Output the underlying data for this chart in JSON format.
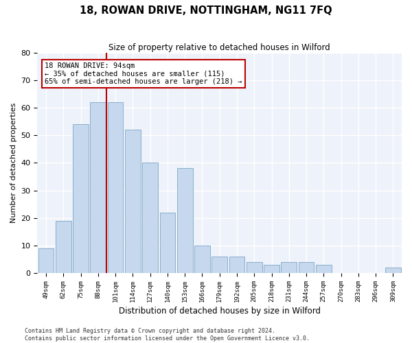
{
  "title": "18, ROWAN DRIVE, NOTTINGHAM, NG11 7FQ",
  "subtitle": "Size of property relative to detached houses in Wilford",
  "xlabel": "Distribution of detached houses by size in Wilford",
  "ylabel": "Number of detached properties",
  "bar_labels": [
    "49sqm",
    "62sqm",
    "75sqm",
    "88sqm",
    "101sqm",
    "114sqm",
    "127sqm",
    "140sqm",
    "153sqm",
    "166sqm",
    "179sqm",
    "192sqm",
    "205sqm",
    "218sqm",
    "231sqm",
    "244sqm",
    "257sqm",
    "270sqm",
    "283sqm",
    "296sqm",
    "309sqm"
  ],
  "bar_values": [
    9,
    19,
    54,
    62,
    62,
    52,
    40,
    22,
    38,
    10,
    6,
    6,
    4,
    3,
    4,
    4,
    3,
    0,
    0,
    0,
    2
  ],
  "bar_color": "#c5d8ed",
  "bar_edge_color": "#89aecb",
  "bg_color": "#eef2fa",
  "grid_color": "#ffffff",
  "annotation_box_text": "18 ROWAN DRIVE: 94sqm\n← 35% of detached houses are smaller (115)\n65% of semi-detached houses are larger (218) →",
  "annotation_box_color": "#bb0000",
  "vline_x_index": 3.5,
  "vline_color": "#bb0000",
  "ylim": [
    0,
    80
  ],
  "yticks": [
    0,
    10,
    20,
    30,
    40,
    50,
    60,
    70,
    80
  ],
  "footer_line1": "Contains HM Land Registry data © Crown copyright and database right 2024.",
  "footer_line2": "Contains public sector information licensed under the Open Government Licence v3.0."
}
